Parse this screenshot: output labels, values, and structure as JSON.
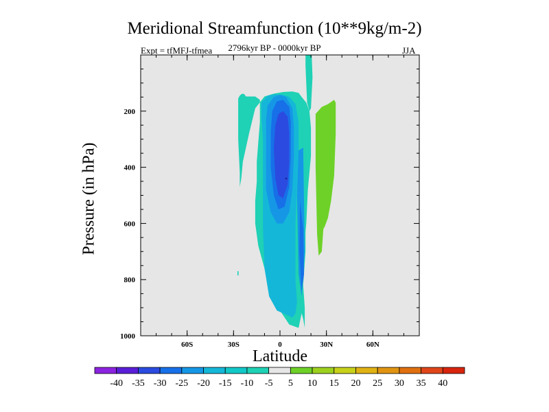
{
  "chart_data": {
    "type": "contour",
    "title": "Meridional Streamfunction (10**9kg/m-2)",
    "subtitle_left": "Expt = tfMFJ-tfmea",
    "subtitle_center": "2796kyr BP - 0000kyr BP",
    "subtitle_right": "JJA",
    "xlabel": "Latitude",
    "ylabel": "Pressure (in hPa)",
    "xlim": [
      -90,
      90
    ],
    "ylim": [
      1000,
      0
    ],
    "x_ticks": [
      "60S",
      "30S",
      "0",
      "30N",
      "60N"
    ],
    "x_tick_values": [
      -60,
      -30,
      0,
      30,
      60
    ],
    "y_ticks": [
      "200",
      "400",
      "600",
      "800",
      "1000"
    ],
    "y_tick_values": [
      200,
      400,
      600,
      800,
      1000
    ],
    "contour_regions": [
      {
        "level": -10,
        "color": "#1fd1b5",
        "lat": [
          -27,
          -26,
          -25,
          -24,
          -23,
          -22,
          -16,
          -13,
          -13,
          -14,
          -15,
          -15,
          -16,
          -16,
          -14,
          -10,
          -6,
          0,
          6,
          12,
          14,
          15,
          16,
          16,
          16,
          15,
          15,
          17,
          18,
          20,
          20,
          19,
          17,
          14,
          12,
          8,
          2,
          -4,
          -10,
          -16,
          -18,
          -20,
          -22,
          -24,
          -25,
          -26,
          -26,
          -27
        ],
        "pres": [
          155,
          145,
          140,
          138,
          140,
          148,
          148,
          160,
          240,
          310,
          380,
          450,
          520,
          600,
          680,
          760,
          840,
          910,
          960,
          972,
          920,
          940,
          972,
          968,
          900,
          820,
          720,
          600,
          480,
          360,
          260,
          200,
          170,
          150,
          135,
          130,
          132,
          138,
          148,
          190,
          235,
          280,
          330,
          380,
          440,
          470,
          420,
          300
        ]
      },
      {
        "level": -10,
        "color": "#1fd1b5",
        "lat": [
          14.5,
          16,
          16.5,
          16.5,
          15,
          14.5
        ],
        "pres": [
          200,
          190,
          300,
          700,
          820,
          600
        ]
      },
      {
        "level": -10,
        "color": "#1fd1b5",
        "lat": [
          16.5,
          17.5,
          19.5,
          20.5,
          21,
          20,
          19,
          17.5,
          16.5
        ],
        "pres": [
          0,
          -10,
          -10,
          0,
          80,
          190,
          200,
          170,
          40
        ]
      },
      {
        "level": -10,
        "color": "#1fd1b5",
        "lat": [
          -27.5,
          -26.8,
          -26.8,
          -27.5
        ],
        "pres": [
          770,
          770,
          785,
          785
        ]
      },
      {
        "level": -15,
        "color": "#15b7d8",
        "lat": [
          -12,
          -8,
          -3,
          2,
          6,
          10,
          12,
          12,
          11,
          10,
          10,
          10,
          11,
          10,
          8,
          4,
          -2,
          -7,
          -10,
          -11,
          -11,
          -11,
          -12
        ],
        "pres": [
          170,
          145,
          140,
          142,
          150,
          175,
          240,
          360,
          480,
          600,
          700,
          800,
          880,
          920,
          935,
          925,
          910,
          860,
          760,
          620,
          460,
          300,
          220
        ]
      },
      {
        "level": -20,
        "color": "#1597e6",
        "lat": [
          -8,
          -4,
          0,
          4,
          8,
          9,
          9,
          8,
          6,
          2,
          -2,
          -6,
          -9,
          -9,
          -9
        ],
        "pres": [
          180,
          150,
          142,
          150,
          190,
          260,
          360,
          480,
          560,
          600,
          600,
          560,
          480,
          350,
          230
        ]
      },
      {
        "level": -20,
        "color": "#1597e6",
        "lat": [
          12,
          15,
          16,
          14,
          12,
          11
        ],
        "pres": [
          340,
          330,
          700,
          860,
          780,
          500
        ]
      },
      {
        "level": -25,
        "color": "#1770e8",
        "lat": [
          -5,
          -2,
          2,
          6,
          7,
          7,
          6,
          3,
          -1,
          -4,
          -6,
          -6
        ],
        "pres": [
          200,
          165,
          160,
          185,
          240,
          360,
          470,
          540,
          550,
          500,
          400,
          280
        ]
      },
      {
        "level": -25,
        "color": "#1770e8",
        "lat": [
          13,
          15,
          15.5,
          14,
          12.5
        ],
        "pres": [
          520,
          620,
          780,
          840,
          700
        ]
      },
      {
        "level": -30,
        "color": "#2b4be0",
        "lat": [
          -3,
          -1,
          2,
          5,
          6,
          6,
          5,
          2,
          -1,
          -3,
          -4
        ],
        "pres": [
          250,
          210,
          200,
          220,
          280,
          380,
          460,
          510,
          500,
          440,
          330
        ]
      },
      {
        "level": 10,
        "color": "#6ed128",
        "lat": [
          23,
          27,
          31,
          35,
          36,
          36,
          35,
          33,
          31,
          29,
          28,
          27,
          25,
          24,
          23
        ],
        "pres": [
          210,
          185,
          175,
          160,
          170,
          280,
          430,
          520,
          580,
          610,
          620,
          700,
          715,
          640,
          400
        ]
      }
    ],
    "colorbar": {
      "labels": [
        "-40",
        "-35",
        "-30",
        "-25",
        "-20",
        "-15",
        "-10",
        "-5",
        "5",
        "10",
        "15",
        "20",
        "25",
        "30",
        "35",
        "40"
      ],
      "colors": [
        "#8c23e0",
        "#5a1ed8",
        "#2b4be0",
        "#1770e8",
        "#1597e6",
        "#15b7d8",
        "#12c8c8",
        "#1fd1b5",
        "#e6e6e6",
        "#6ed128",
        "#9dd11f",
        "#c8d11a",
        "#e0b214",
        "#e09412",
        "#e0700f",
        "#e0451a",
        "#d8250e"
      ]
    },
    "plot_background": "#e6e6e6"
  }
}
